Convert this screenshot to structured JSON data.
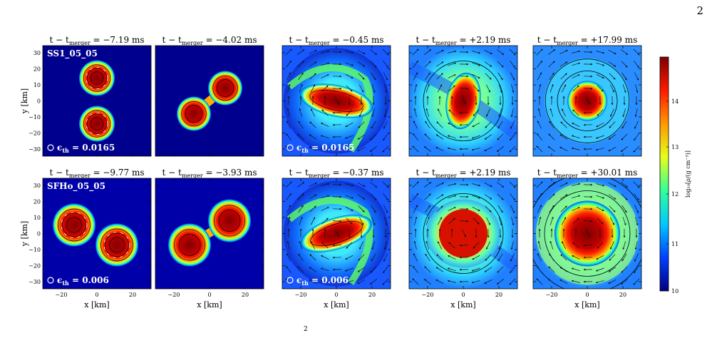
{
  "page_number": "2",
  "figure": {
    "rows": [
      {
        "model": "SS1_05_05",
        "eps_label": "ϵ",
        "eps_sub": "th",
        "eps_value": "= 0.0165",
        "panels": [
          {
            "time": "−7.19",
            "unit": "ms",
            "stage": "inspiral"
          },
          {
            "time": "−4.02",
            "unit": "ms",
            "stage": "contact"
          },
          {
            "time": "−0.45",
            "unit": "ms",
            "stage": "merger"
          },
          {
            "time": "+2.19",
            "unit": "ms",
            "stage": "remnant-early"
          },
          {
            "time": "+17.99",
            "unit": "ms",
            "stage": "remnant-late"
          }
        ]
      },
      {
        "model": "SFHo_05_05",
        "eps_label": "ϵ",
        "eps_sub": "th",
        "eps_value": "= 0.006",
        "panels": [
          {
            "time": "−9.77",
            "unit": "ms",
            "stage": "inspiral"
          },
          {
            "time": "−3.93",
            "unit": "ms",
            "stage": "contact"
          },
          {
            "time": "−0.37",
            "unit": "ms",
            "stage": "merger"
          },
          {
            "time": "+2.19",
            "unit": "ms",
            "stage": "remnant-early"
          },
          {
            "time": "+30.01",
            "unit": "ms",
            "stage": "remnant-late"
          }
        ]
      }
    ],
    "title_prefix": "t − t",
    "title_sub": "merger",
    "ylabel": "y [km]",
    "xlabel": "x [km]",
    "y_ticks": [
      "30",
      "20",
      "10",
      "0",
      "−10",
      "−20",
      "−30"
    ],
    "x_ticks": [
      "−20",
      "0",
      "20"
    ],
    "colorbar": {
      "label": "log₁₀[ρ/(g cm⁻³)]",
      "ticks": [
        "14",
        "13",
        "12",
        "11",
        "10"
      ],
      "colors": [
        "#7f0000",
        "#ff1a00",
        "#ff9900",
        "#e6ff1a",
        "#33ff99",
        "#00c8ff",
        "#0040ff",
        "#00007f"
      ]
    },
    "footer_fragment": "2"
  }
}
